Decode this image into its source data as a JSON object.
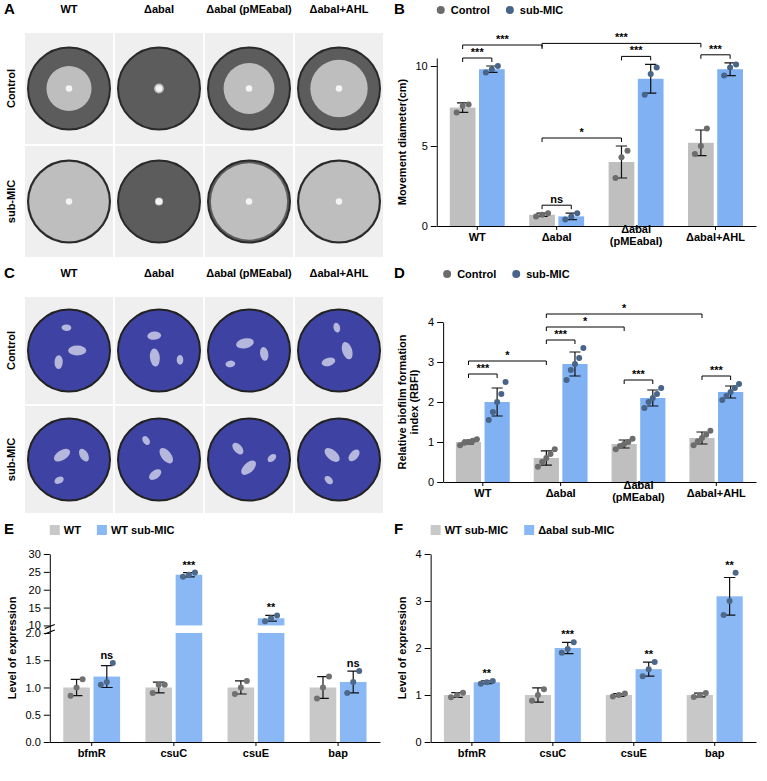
{
  "chart_data": [
    {
      "type": "image",
      "panel": "A",
      "marker": "swarm",
      "color": "#cfcfcf",
      "columns": [
        "WT",
        "ΔabaI",
        "ΔabaI (pMEabaI)",
        "ΔabaI+AHL"
      ],
      "rows": [
        "Control",
        "sub-MIC"
      ]
    },
    {
      "type": "bar",
      "panel": "B",
      "ylabel": "Movement diameter(cm)",
      "categories": [
        "WT",
        "ΔabaI",
        "ΔabaI (pMEabaI)",
        "ΔabaI+AHL"
      ],
      "ylim": [
        0,
        10.5
      ],
      "yticks": [
        0,
        5,
        10
      ],
      "legend": "top",
      "marker": "circle",
      "series": [
        {
          "name": "Control",
          "color": "#bfbfbf",
          "values": [
            7.4,
            0.7,
            4.0,
            5.2
          ],
          "errors": [
            0.3,
            0.1,
            1.0,
            0.8
          ],
          "points": [
            [
              7.1,
              7.5,
              7.6
            ],
            [
              0.6,
              0.7,
              0.8
            ],
            [
              3.0,
              4.3,
              4.7
            ],
            [
              4.5,
              5.0,
              6.1
            ]
          ]
        },
        {
          "name": "sub-MIC",
          "color": "#7fb1f3",
          "values": [
            9.8,
            0.6,
            9.2,
            9.8
          ],
          "errors": [
            0.2,
            0.2,
            0.9,
            0.4
          ],
          "points": [
            [
              9.6,
              9.8,
              10.0
            ],
            [
              0.4,
              0.6,
              0.8
            ],
            [
              8.2,
              9.5,
              9.9
            ],
            [
              9.4,
              9.9,
              10.1
            ]
          ]
        }
      ],
      "comparisons": [
        {
          "from": [
            0,
            0
          ],
          "to": [
            1,
            0
          ],
          "label": "***"
        },
        {
          "from": [
            0,
            0
          ],
          "to": [
            0,
            1
          ],
          "label": "***"
        },
        {
          "from": [
            0,
            1
          ],
          "to": [
            0,
            3
          ],
          "label": "***"
        },
        {
          "from": [
            0,
            1
          ],
          "to": [
            1,
            1
          ],
          "label": "ns"
        },
        {
          "from": [
            0,
            1
          ],
          "to": [
            0,
            2
          ],
          "label": "*"
        },
        {
          "from": [
            0,
            2
          ],
          "to": [
            1,
            2
          ],
          "label": "***"
        },
        {
          "from": [
            0,
            3
          ],
          "to": [
            1,
            3
          ],
          "label": "***"
        }
      ]
    },
    {
      "type": "image",
      "panel": "C",
      "marker": "stain",
      "color": "#3e43a3",
      "columns": [
        "WT",
        "ΔabaI",
        "ΔabaI (pMEabaI)",
        "ΔabaI+AHL"
      ],
      "rows": [
        "Control",
        "sub-MIC"
      ]
    },
    {
      "type": "bar",
      "panel": "D",
      "ylabel": "Relative biofilm formation index (RBFI)",
      "categories": [
        "WT",
        "ΔabaI",
        "ΔabaI (pMEabaI)",
        "ΔabaI+AHL"
      ],
      "ylim": [
        0,
        4
      ],
      "yticks": [
        0,
        1,
        2,
        3,
        4
      ],
      "legend": "top",
      "marker": "circle",
      "series": [
        {
          "name": "Control",
          "color": "#bfbfbf",
          "values": [
            1.0,
            0.6,
            0.95,
            1.1
          ],
          "errors": [
            0.05,
            0.18,
            0.1,
            0.15
          ],
          "points": [
            [
              0.92,
              0.98,
              1.0,
              1.03,
              1.07
            ],
            [
              0.38,
              0.5,
              0.6,
              0.7,
              0.82
            ],
            [
              0.82,
              0.9,
              0.95,
              1.0,
              1.08
            ],
            [
              0.92,
              1.02,
              1.1,
              1.18,
              1.28
            ]
          ]
        },
        {
          "name": "sub-MIC",
          "color": "#7fb1f3",
          "values": [
            2.0,
            2.95,
            2.1,
            2.25
          ],
          "errors": [
            0.35,
            0.3,
            0.2,
            0.15
          ],
          "points": [
            [
              1.55,
              1.75,
              2.0,
              2.2,
              2.5
            ],
            [
              2.55,
              2.8,
              2.95,
              3.1,
              3.35
            ],
            [
              1.85,
              2.0,
              2.1,
              2.2,
              2.35
            ],
            [
              2.05,
              2.15,
              2.25,
              2.35,
              2.45
            ]
          ]
        }
      ],
      "comparisons": [
        {
          "from": [
            0,
            0
          ],
          "to": [
            1,
            0
          ],
          "label": "***"
        },
        {
          "from": [
            0,
            0
          ],
          "to": [
            0,
            1
          ],
          "label": "*"
        },
        {
          "from": [
            0,
            1
          ],
          "to": [
            0,
            3
          ],
          "label": "*"
        },
        {
          "from": [
            0,
            1
          ],
          "to": [
            1,
            1
          ],
          "label": "***"
        },
        {
          "from": [
            0,
            1
          ],
          "to": [
            0,
            2
          ],
          "label": "*"
        },
        {
          "from": [
            0,
            2
          ],
          "to": [
            1,
            2
          ],
          "label": "***"
        },
        {
          "from": [
            0,
            3
          ],
          "to": [
            1,
            3
          ],
          "label": "***"
        }
      ]
    },
    {
      "type": "bar",
      "panel": "E",
      "ylabel": "Level of expression",
      "categories": [
        "bfmR",
        "csuC",
        "csuE",
        "bap"
      ],
      "ylim": [
        0,
        30
      ],
      "ybreak": [
        2,
        10
      ],
      "yticks": [
        {
          "value": 0,
          "label": "0.0"
        },
        0.5,
        {
          "value": 1,
          "label": "1.0"
        },
        1.5,
        {
          "value": 2,
          "label": "2.0"
        },
        10,
        15,
        20,
        25,
        30
      ],
      "legend": "top",
      "marker": "square",
      "series": [
        {
          "name": "WT",
          "color": "#c8c8c8",
          "values": [
            1.0,
            1.0,
            1.0,
            1.0
          ],
          "errors": [
            0.15,
            0.1,
            0.12,
            0.2
          ],
          "points": [
            [
              0.85,
              1.0,
              1.15
            ],
            [
              0.9,
              1.05,
              1.05
            ],
            [
              0.88,
              1.0,
              1.12
            ],
            [
              0.8,
              1.0,
              1.2
            ]
          ]
        },
        {
          "name": "WT sub-MIC",
          "color": "#8ab8f5",
          "values": [
            1.2,
            24.2,
            12.0,
            1.1
          ],
          "errors": [
            0.2,
            0.6,
            0.8,
            0.2
          ],
          "points": [
            [
              1.05,
              1.1,
              1.45
            ],
            [
              23.6,
              24.2,
              24.8
            ],
            [
              11.2,
              12.0,
              12.8
            ],
            [
              0.9,
              1.1,
              1.3
            ]
          ],
          "significance": [
            "ns",
            "***",
            "**",
            "ns"
          ]
        }
      ]
    },
    {
      "type": "bar",
      "panel": "F",
      "ylabel": "Level of expression",
      "categories": [
        "bfmR",
        "csuC",
        "csuE",
        "bap"
      ],
      "ylim": [
        0,
        4
      ],
      "yticks": [
        0,
        1,
        2,
        3,
        4
      ],
      "legend": "top",
      "marker": "square",
      "series": [
        {
          "name": "WT sub-MIC",
          "color": "#c8c8c8",
          "values": [
            1.0,
            1.0,
            1.0,
            1.0
          ],
          "errors": [
            0.05,
            0.15,
            0.03,
            0.04
          ],
          "points": [
            [
              0.95,
              1.0,
              1.05
            ],
            [
              0.88,
              1.0,
              1.12
            ],
            [
              0.97,
              1.0,
              1.03
            ],
            [
              0.96,
              1.0,
              1.04
            ]
          ]
        },
        {
          "name": "ΔabaI sub-MIC",
          "color": "#8ab8f5",
          "values": [
            1.27,
            2.0,
            1.55,
            3.1
          ],
          "errors": [
            0.03,
            0.12,
            0.15,
            0.4
          ],
          "points": [
            [
              1.24,
              1.27,
              1.3
            ],
            [
              1.9,
              1.98,
              2.12
            ],
            [
              1.4,
              1.55,
              1.7
            ],
            [
              2.7,
              3.0,
              3.6
            ]
          ],
          "significance": [
            "**",
            "***",
            "**",
            "**"
          ]
        }
      ]
    }
  ]
}
